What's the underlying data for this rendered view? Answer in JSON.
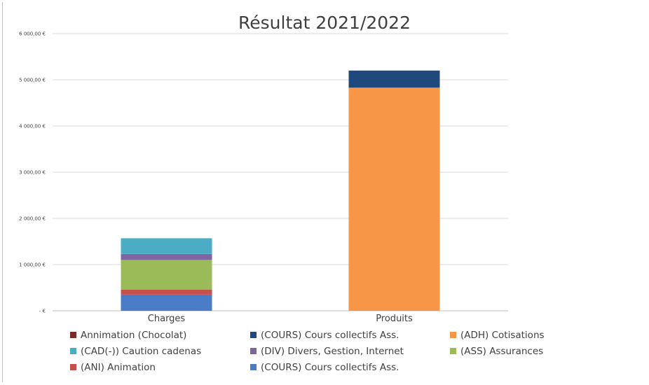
{
  "chart_data": {
    "type": "bar",
    "stacked": true,
    "title": "Résultat 2021/2022",
    "categories": [
      "Charges",
      "Produits"
    ],
    "ylim": [
      0,
      6000
    ],
    "yticks": [
      0,
      1000,
      2000,
      3000,
      4000,
      5000,
      6000
    ],
    "ytick_labels": [
      "- €",
      "1 000,00 €",
      "2 000,00 €",
      "3 000,00 €",
      "4 000,00 €",
      "5 000,00 €",
      "6 000,00 €"
    ],
    "grid": true,
    "legend_position": "bottom",
    "series": [
      {
        "name": "(COURS) Cours collectifs Ass.",
        "color": "#4a7cc7",
        "values": [
          350,
          0
        ]
      },
      {
        "name": "(ANI) Animation",
        "color": "#c6504e",
        "values": [
          110,
          0
        ]
      },
      {
        "name": "(ASS) Assurances",
        "color": "#9bbb59",
        "values": [
          640,
          0
        ]
      },
      {
        "name": "(DIV) Divers, Gestion, Internet",
        "color": "#8064a2",
        "values": [
          130,
          0
        ]
      },
      {
        "name": "(CAD(-)) Caution cadenas",
        "color": "#4bacc6",
        "values": [
          340,
          0
        ]
      },
      {
        "name": "(ADH) Cotisations",
        "color": "#f79646",
        "values": [
          0,
          4830
        ]
      },
      {
        "name": "(COURS) Cours collectifs Ass.",
        "color": "#1f497d",
        "values": [
          0,
          370
        ]
      },
      {
        "name": "Annimation (Chocolat)",
        "color": "#772c2a",
        "values": [
          0,
          0
        ]
      }
    ],
    "legend_order": [
      7,
      6,
      5,
      4,
      3,
      2,
      1,
      0
    ]
  }
}
